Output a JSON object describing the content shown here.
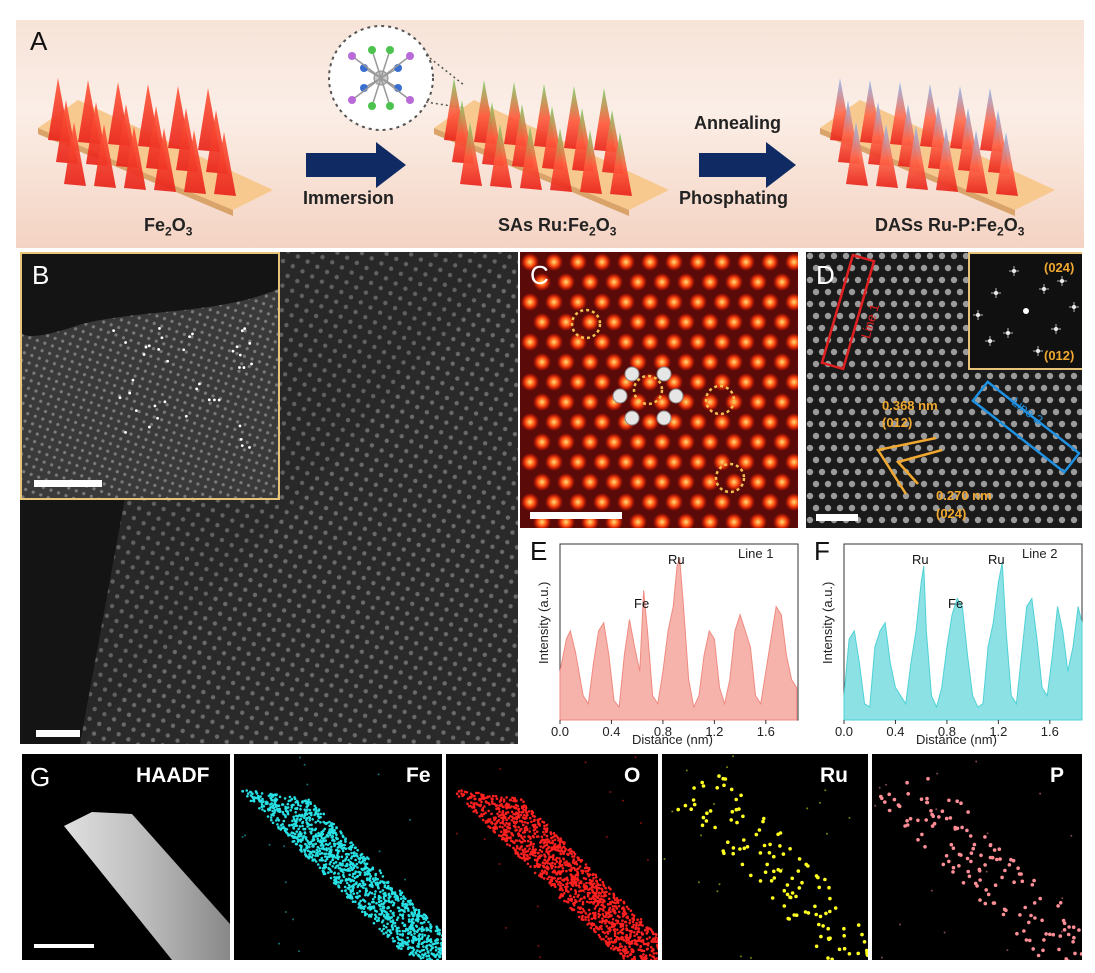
{
  "panels": {
    "A": "A",
    "B": "B",
    "C": "C",
    "D": "D",
    "E": "E",
    "F": "F",
    "G": "G"
  },
  "schematic": {
    "stage1": {
      "main": "Fe",
      "sub1": "2",
      "mid": "O",
      "sub2": "3"
    },
    "arrow1": "Immersion",
    "stage2": {
      "main": "SAs Ru:Fe",
      "sub1": "2",
      "mid": "O",
      "sub2": "3"
    },
    "arrow2_top": "Annealing",
    "arrow2_bottom": "Phosphating",
    "stage3": {
      "main": "DASs Ru-P:Fe",
      "sub1": "2",
      "mid": "O",
      "sub2": "3"
    }
  },
  "panelD": {
    "line1": "Line 1",
    "line2": "Line 2",
    "fft_top": "(024)",
    "fft_bottom": "(012)",
    "d1_value": "0.368 nm",
    "d1_plane": "(012)",
    "d2_value": "0.270 nm",
    "d2_plane": "(024)"
  },
  "chart_data": [
    {
      "type": "area",
      "panel": "E",
      "legend": "Line 1",
      "xlabel": "Distance (nm)",
      "ylabel": "Intensity (a.u.)",
      "xlim": [
        0,
        1.85
      ],
      "xticks": [
        "0.0",
        "0.4",
        "0.8",
        "1.2",
        "1.6"
      ],
      "color": "#f08a80",
      "peaks": [
        {
          "label": "Fe",
          "x": 0.65
        },
        {
          "label": "Ru",
          "x": 0.93
        }
      ],
      "x": [
        0.0,
        0.05,
        0.08,
        0.12,
        0.18,
        0.22,
        0.26,
        0.3,
        0.34,
        0.38,
        0.42,
        0.46,
        0.5,
        0.54,
        0.58,
        0.62,
        0.65,
        0.68,
        0.72,
        0.76,
        0.8,
        0.84,
        0.88,
        0.91,
        0.93,
        0.96,
        1.0,
        1.04,
        1.08,
        1.12,
        1.16,
        1.2,
        1.24,
        1.28,
        1.32,
        1.36,
        1.4,
        1.44,
        1.48,
        1.52,
        1.56,
        1.6,
        1.64,
        1.68,
        1.72,
        1.76,
        1.8,
        1.84
      ],
      "y": [
        0.3,
        0.5,
        0.55,
        0.42,
        0.15,
        0.1,
        0.35,
        0.55,
        0.6,
        0.4,
        0.12,
        0.08,
        0.4,
        0.62,
        0.45,
        0.3,
        0.8,
        0.55,
        0.15,
        0.1,
        0.3,
        0.55,
        0.7,
        0.95,
        1.0,
        0.7,
        0.25,
        0.08,
        0.15,
        0.4,
        0.55,
        0.5,
        0.2,
        0.1,
        0.25,
        0.55,
        0.65,
        0.55,
        0.45,
        0.15,
        0.1,
        0.3,
        0.5,
        0.7,
        0.65,
        0.4,
        0.25,
        0.2
      ]
    },
    {
      "type": "area",
      "panel": "F",
      "legend": "Line 2",
      "xlabel": "Distance (nm)",
      "ylabel": "Intensity (a.u.)",
      "xlim": [
        0,
        1.85
      ],
      "xticks": [
        "0.0",
        "0.4",
        "0.8",
        "1.2",
        "1.6"
      ],
      "color": "#4fd1d5",
      "peaks": [
        {
          "label": "Ru",
          "x": 0.62
        },
        {
          "label": "Fe",
          "x": 0.93
        },
        {
          "label": "Ru",
          "x": 1.23
        }
      ],
      "x": [
        0.0,
        0.04,
        0.08,
        0.12,
        0.16,
        0.2,
        0.24,
        0.28,
        0.32,
        0.36,
        0.4,
        0.44,
        0.48,
        0.52,
        0.56,
        0.6,
        0.62,
        0.64,
        0.68,
        0.72,
        0.76,
        0.8,
        0.84,
        0.88,
        0.92,
        0.96,
        1.0,
        1.04,
        1.08,
        1.12,
        1.16,
        1.2,
        1.23,
        1.26,
        1.3,
        1.34,
        1.38,
        1.42,
        1.46,
        1.5,
        1.54,
        1.58,
        1.62,
        1.66,
        1.7,
        1.74,
        1.78,
        1.82,
        1.85
      ],
      "y": [
        0.15,
        0.5,
        0.55,
        0.35,
        0.1,
        0.08,
        0.45,
        0.55,
        0.6,
        0.35,
        0.2,
        0.15,
        0.1,
        0.35,
        0.55,
        0.85,
        0.95,
        0.55,
        0.15,
        0.08,
        0.2,
        0.45,
        0.65,
        0.75,
        0.7,
        0.4,
        0.15,
        0.08,
        0.1,
        0.45,
        0.6,
        0.85,
        0.97,
        0.55,
        0.15,
        0.1,
        0.4,
        0.7,
        0.75,
        0.5,
        0.2,
        0.15,
        0.4,
        0.7,
        0.55,
        0.3,
        0.45,
        0.7,
        0.6
      ]
    }
  ],
  "eds": {
    "haadf": "HAADF",
    "fe": "Fe",
    "o": "O",
    "ru": "Ru",
    "p": "P",
    "colors": {
      "fe": "#27e0e4",
      "o": "#ff2020",
      "ru": "#ffff20",
      "p": "#ff8e96"
    }
  }
}
